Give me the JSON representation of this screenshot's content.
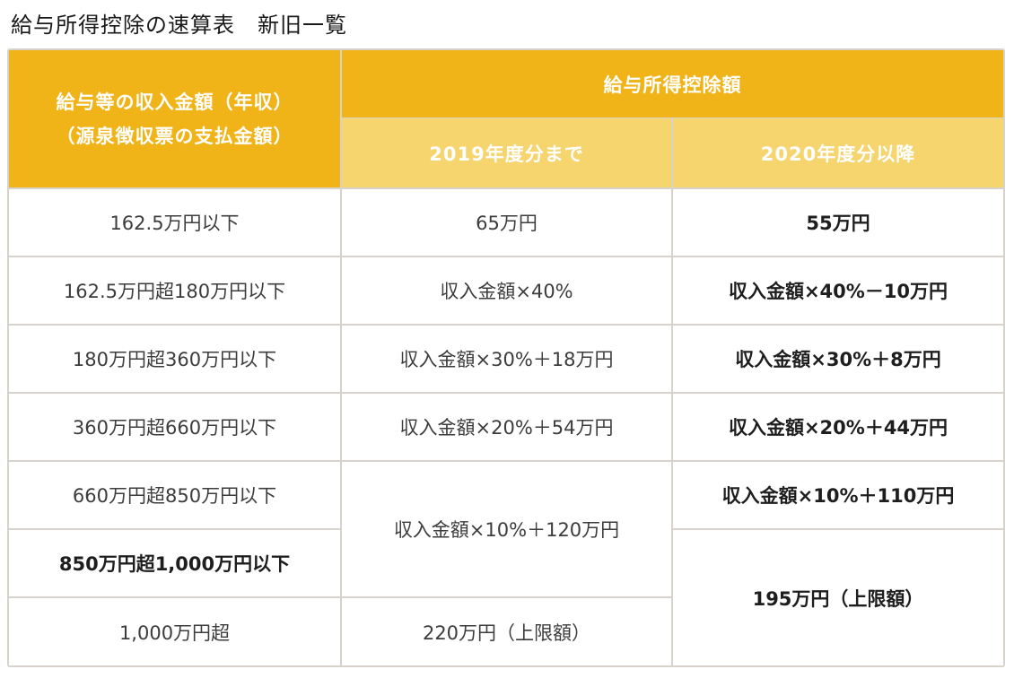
{
  "page": {
    "title": "給与所得控除の速算表　新旧一覧"
  },
  "table": {
    "header": {
      "income_col_line1": "給与等の収入金額（年収）",
      "income_col_line2": "（源泉徴収票の支払金額）",
      "deduction_group": "給与所得控除額",
      "old_col": "2019年度分まで",
      "new_col": "2020年度分以降"
    },
    "income_ranges": [
      "162.5万円以下",
      "162.5万円超180万円以下",
      "180万円超360万円以下",
      "360万円超660万円以下",
      "660万円超850万円以下",
      "850万円超1,000万円以下",
      "1,000万円超"
    ],
    "old_deductions": [
      "65万円",
      "収入金額×40%",
      "収入金額×30%＋18万円",
      "収入金額×20%＋54万円",
      "収入金額×10%＋120万円",
      "220万円（上限額）"
    ],
    "new_deductions": [
      "55万円",
      "収入金額×40%－10万円",
      "収入金額×30%＋8万円",
      "収入金額×20%＋44万円",
      "収入金額×10%＋110万円",
      "195万円（上限額）"
    ]
  },
  "colors": {
    "header_dark": "#f0b418",
    "header_light": "#f6d46e",
    "border": "#d7d3cc"
  }
}
